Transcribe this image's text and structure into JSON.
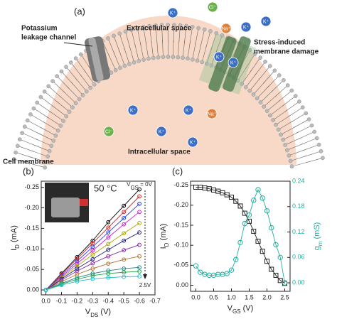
{
  "panel_a": {
    "label": "(a)",
    "channel_label": [
      "Potassium",
      "leakage channel"
    ],
    "extracellular": "Extracellular space",
    "damage_label": [
      "Stress-induced",
      "membrane damage"
    ],
    "membrane_label": "Cell membrane",
    "intracellular": "Intracellular space",
    "ions": [
      "K⁺",
      "Cl⁻",
      "Na⁺",
      "K⁺",
      "K⁺",
      "K⁺",
      "K⁺",
      "K⁺",
      "K⁺",
      "Na⁺",
      "Cl⁻",
      "K⁺",
      "K⁺"
    ]
  },
  "chart_data": [
    {
      "type": "line",
      "panel_label": "(b)",
      "xlabel": [
        "V",
        "DS",
        " (V)"
      ],
      "ylabel": [
        "I",
        "D",
        " (mA)"
      ],
      "annotations": [
        "50 °C",
        "2.5V"
      ],
      "vgs_label": [
        "V",
        "GS",
        " = 0V"
      ],
      "x": [
        0,
        -0.1,
        -0.2,
        -0.3,
        -0.4,
        -0.5,
        -0.6
      ],
      "xlim": [
        0.03,
        -0.7
      ],
      "xticks": [
        {
          "value": 0,
          "label": "0.0"
        },
        -0.1,
        -0.2,
        -0.3,
        -0.4,
        -0.5,
        -0.6,
        -0.7
      ],
      "ylim": [
        0.012,
        -0.265
      ],
      "yticks": [
        {
          "value": 0,
          "label": "0.00"
        },
        -0.05,
        {
          "value": -0.1,
          "label": "-0.10"
        },
        -0.15,
        {
          "value": -0.2,
          "label": "-0.20"
        },
        -0.25
      ],
      "series": [
        {
          "color": "#000000",
          "values": [
            0,
            -0.04,
            -0.08,
            -0.12,
            -0.165,
            -0.205,
            -0.245
          ]
        },
        {
          "color": "#e02020",
          "values": [
            0,
            -0.038,
            -0.076,
            -0.114,
            -0.152,
            -0.19,
            -0.228
          ]
        },
        {
          "color": "#2040e0",
          "values": [
            0,
            -0.035,
            -0.07,
            -0.105,
            -0.14,
            -0.175,
            -0.21
          ]
        },
        {
          "color": "#d020d0",
          "values": [
            0,
            -0.032,
            -0.064,
            -0.096,
            -0.128,
            -0.16,
            -0.19
          ]
        },
        {
          "color": "#a8a800",
          "values": [
            0,
            -0.03,
            -0.058,
            -0.086,
            -0.112,
            -0.138,
            -0.163
          ]
        },
        {
          "color": "#202080",
          "values": [
            0,
            -0.027,
            -0.052,
            -0.075,
            -0.098,
            -0.12,
            -0.14
          ]
        },
        {
          "color": "#8030a0",
          "values": [
            0,
            -0.024,
            -0.046,
            -0.065,
            -0.082,
            -0.097,
            -0.11
          ]
        },
        {
          "color": "#b07030",
          "values": [
            0,
            -0.02,
            -0.038,
            -0.052,
            -0.064,
            -0.074,
            -0.082
          ]
        },
        {
          "color": "#208080",
          "values": [
            0,
            -0.016,
            -0.03,
            -0.04,
            -0.047,
            -0.052,
            -0.055
          ]
        },
        {
          "color": "#20a040",
          "values": [
            0,
            -0.014,
            -0.026,
            -0.035,
            -0.04,
            -0.043,
            -0.045
          ]
        },
        {
          "color": "#20c0d0",
          "values": [
            0,
            -0.012,
            -0.021,
            -0.027,
            -0.03,
            -0.032,
            -0.033
          ]
        }
      ]
    },
    {
      "type": "line",
      "panel_label": "(c)",
      "xlabel": [
        "V",
        "GS",
        " (V)"
      ],
      "ylabel": [
        "I",
        "D",
        " (mA)"
      ],
      "y2label": [
        "g",
        "m",
        " (mS)"
      ],
      "x": [
        0,
        0.125,
        0.25,
        0.375,
        0.5,
        0.625,
        0.75,
        0.875,
        1.0,
        1.125,
        1.25,
        1.375,
        1.5,
        1.625,
        1.75,
        1.875,
        2.0,
        2.125,
        2.25,
        2.375,
        2.5
      ],
      "xlim": [
        -0.15,
        2.65
      ],
      "xticks": [
        {
          "value": 0,
          "label": "0.0"
        },
        0.5,
        {
          "value": 1,
          "label": "1.0"
        },
        1.5,
        {
          "value": 2,
          "label": "2.0"
        },
        2.5
      ],
      "ylim": [
        0.015,
        -0.26
      ],
      "yticks": [
        {
          "value": 0,
          "label": "0.00"
        },
        -0.05,
        {
          "value": -0.1,
          "label": "-0.10"
        },
        -0.15,
        {
          "value": -0.2,
          "label": "-0.20"
        },
        -0.25
      ],
      "y2lim": [
        -0.02,
        0.24
      ],
      "y2ticks": [
        {
          "value": 0,
          "label": "0.00"
        },
        0.06,
        0.12,
        0.18,
        0.24
      ],
      "series": [
        {
          "color": "#222222",
          "marker": "square",
          "values": [
            -0.245,
            -0.245,
            -0.243,
            -0.241,
            -0.238,
            -0.235,
            -0.231,
            -0.226,
            -0.22,
            -0.21,
            -0.198,
            -0.18,
            -0.16,
            -0.135,
            -0.11,
            -0.085,
            -0.06,
            -0.04,
            -0.025,
            -0.012,
            -0.005
          ]
        },
        {
          "color": "#1fb0a0",
          "marker": "circle",
          "axis": "y2",
          "values": [
            0.04,
            0.025,
            0.02,
            0.018,
            0.018,
            0.02,
            0.02,
            0.022,
            0.03,
            0.055,
            0.095,
            0.14,
            0.16,
            0.195,
            0.22,
            0.2,
            0.17,
            0.13,
            0.09,
            0.06,
            0.0
          ]
        }
      ]
    }
  ]
}
